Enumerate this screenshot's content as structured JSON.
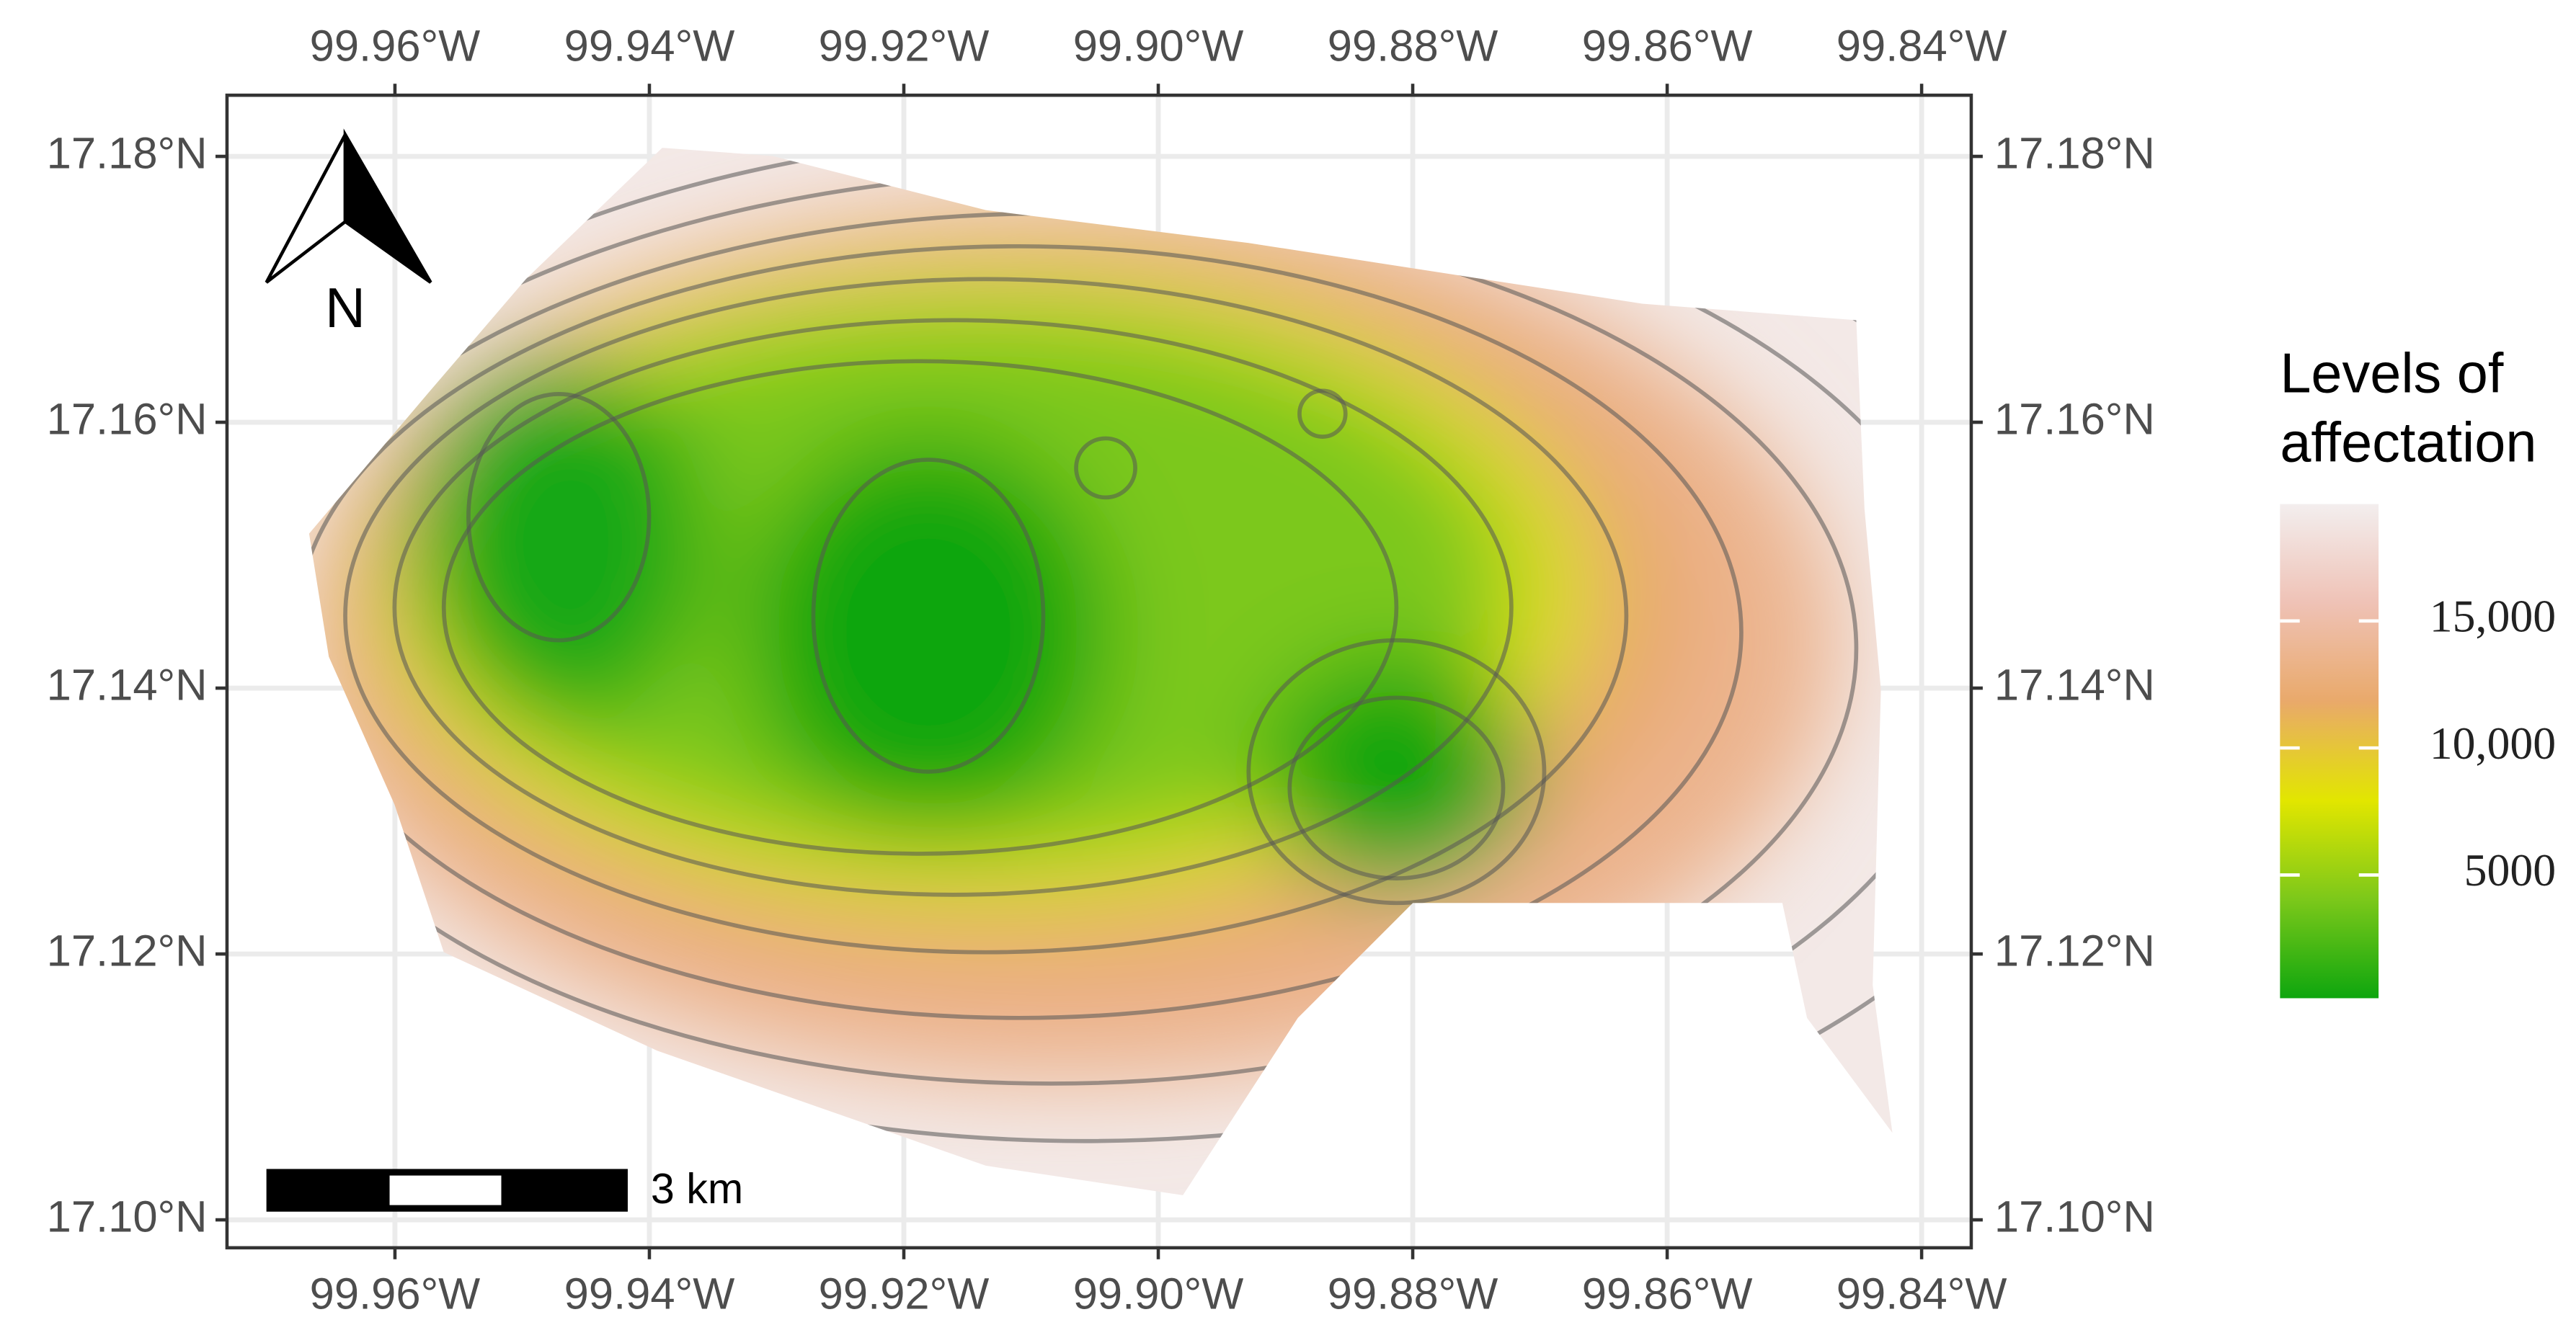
{
  "chart_data": {
    "type": "map",
    "xlim": [
      -99.9732,
      -99.8361
    ],
    "ylim": [
      17.0979,
      17.1846
    ],
    "xticks": [
      {
        "value": -99.96,
        "label": "99.96°W"
      },
      {
        "value": -99.94,
        "label": "99.94°W"
      },
      {
        "value": -99.92,
        "label": "99.92°W"
      },
      {
        "value": -99.9,
        "label": "99.90°W"
      },
      {
        "value": -99.88,
        "label": "99.88°W"
      },
      {
        "value": -99.86,
        "label": "99.86°W"
      },
      {
        "value": -99.84,
        "label": "99.84°W"
      }
    ],
    "yticks": [
      {
        "value": 17.1,
        "label": "17.10°N"
      },
      {
        "value": 17.12,
        "label": "17.12°N"
      },
      {
        "value": 17.14,
        "label": "17.14°N"
      },
      {
        "value": 17.16,
        "label": "17.16°N"
      },
      {
        "value": 17.18,
        "label": "17.18°N"
      }
    ],
    "grid": true,
    "north_arrow": "N",
    "scale_bar": "3 km",
    "legend": {
      "title": [
        "Levels of",
        "affectation"
      ],
      "lim": [
        150,
        19600
      ],
      "ticks": [
        5000,
        {
          "value": 10000,
          "label": "10,000"
        },
        {
          "value": 15000,
          "label": "15,000"
        }
      ],
      "colors": [
        "#0ea60e",
        "#7cc81a",
        "#e2e600",
        "#e9a96a",
        "#efc2b6",
        "#f3eeee"
      ]
    }
  }
}
